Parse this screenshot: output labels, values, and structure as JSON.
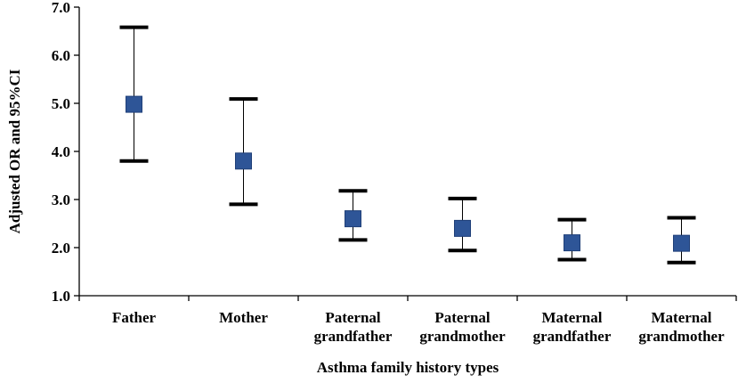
{
  "chart_data": {
    "type": "scatter",
    "title": "",
    "xlabel": "Asthma family history types",
    "ylabel": "Adjusted OR and 95%CI",
    "ylim": [
      1.0,
      7.0
    ],
    "yticks": [
      "1.0",
      "2.0",
      "3.0",
      "4.0",
      "5.0",
      "6.0",
      "7.0"
    ],
    "grid": false,
    "legend": "none",
    "categories": [
      [
        "Father"
      ],
      [
        "Mother"
      ],
      [
        "Paternal",
        "grandfather"
      ],
      [
        "Paternal",
        "grandmother"
      ],
      [
        "Maternal",
        "grandfather"
      ],
      [
        "Maternal",
        "grandmother"
      ]
    ],
    "series": [
      {
        "or": [
          4.98,
          3.8,
          2.6,
          2.4,
          2.1,
          2.09
        ],
        "ci_lower": [
          3.8,
          2.9,
          2.16,
          1.94,
          1.75,
          1.69
        ],
        "ci_upper": [
          6.58,
          5.09,
          3.18,
          3.02,
          2.58,
          2.62
        ]
      }
    ],
    "colors": {
      "marker": "#2E5597",
      "marker_edge": "#1F3F78",
      "whisker": "#000000",
      "axis": "#000000"
    }
  }
}
